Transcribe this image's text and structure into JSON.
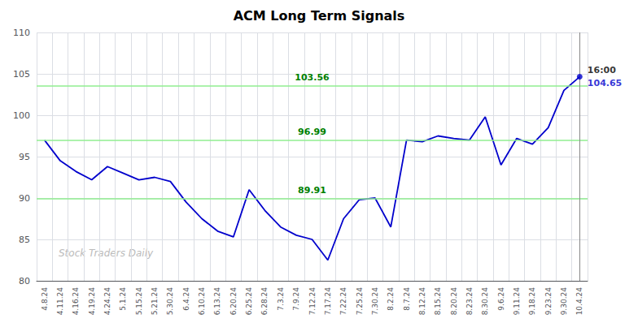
{
  "chart_data": {
    "type": "line",
    "title": "ACM Long Term Signals",
    "categories": [
      "4.8.24",
      "4.11.24",
      "4.16.24",
      "4.19.24",
      "4.24.24",
      "5.1.24",
      "5.15.24",
      "5.21.24",
      "5.30.24",
      "6.4.24",
      "6.10.24",
      "6.13.24",
      "6.20.24",
      "6.25.24",
      "6.28.24",
      "7.3.24",
      "7.9.24",
      "7.12.24",
      "7.17.24",
      "7.22.24",
      "7.25.24",
      "7.30.24",
      "8.2.24",
      "8.7.24",
      "8.12.24",
      "8.15.24",
      "8.20.24",
      "8.23.24",
      "8.30.24",
      "9.6.24",
      "9.11.24",
      "9.18.24",
      "9.23.24",
      "9.30.24",
      "10.4.24"
    ],
    "values": [
      97.0,
      94.5,
      93.2,
      92.2,
      93.8,
      93.0,
      92.2,
      92.5,
      92.0,
      89.5,
      87.5,
      86.0,
      85.3,
      91.0,
      88.5,
      86.5,
      85.5,
      85.0,
      82.5,
      87.5,
      89.8,
      90.0,
      86.5,
      97.0,
      96.8,
      97.5,
      97.2,
      97.0,
      99.8,
      94.0,
      97.2,
      96.5,
      98.5,
      103.0,
      104.65
    ],
    "color": "#0000cc",
    "ylim": [
      80,
      110
    ],
    "yticks": [
      80,
      85,
      90,
      95,
      100,
      105,
      110
    ],
    "grid": true,
    "hlines": [
      {
        "value": 89.91,
        "label": "89.91"
      },
      {
        "value": 96.99,
        "label": "96.99"
      },
      {
        "value": 103.56,
        "label": "103.56"
      }
    ],
    "hline_color": "#90ee90",
    "hline_label_color": "#008000",
    "annotations": [
      "16:00",
      "104.65"
    ],
    "watermark": "Stock Traders Daily",
    "watermark_color": "#bbbbbb"
  }
}
